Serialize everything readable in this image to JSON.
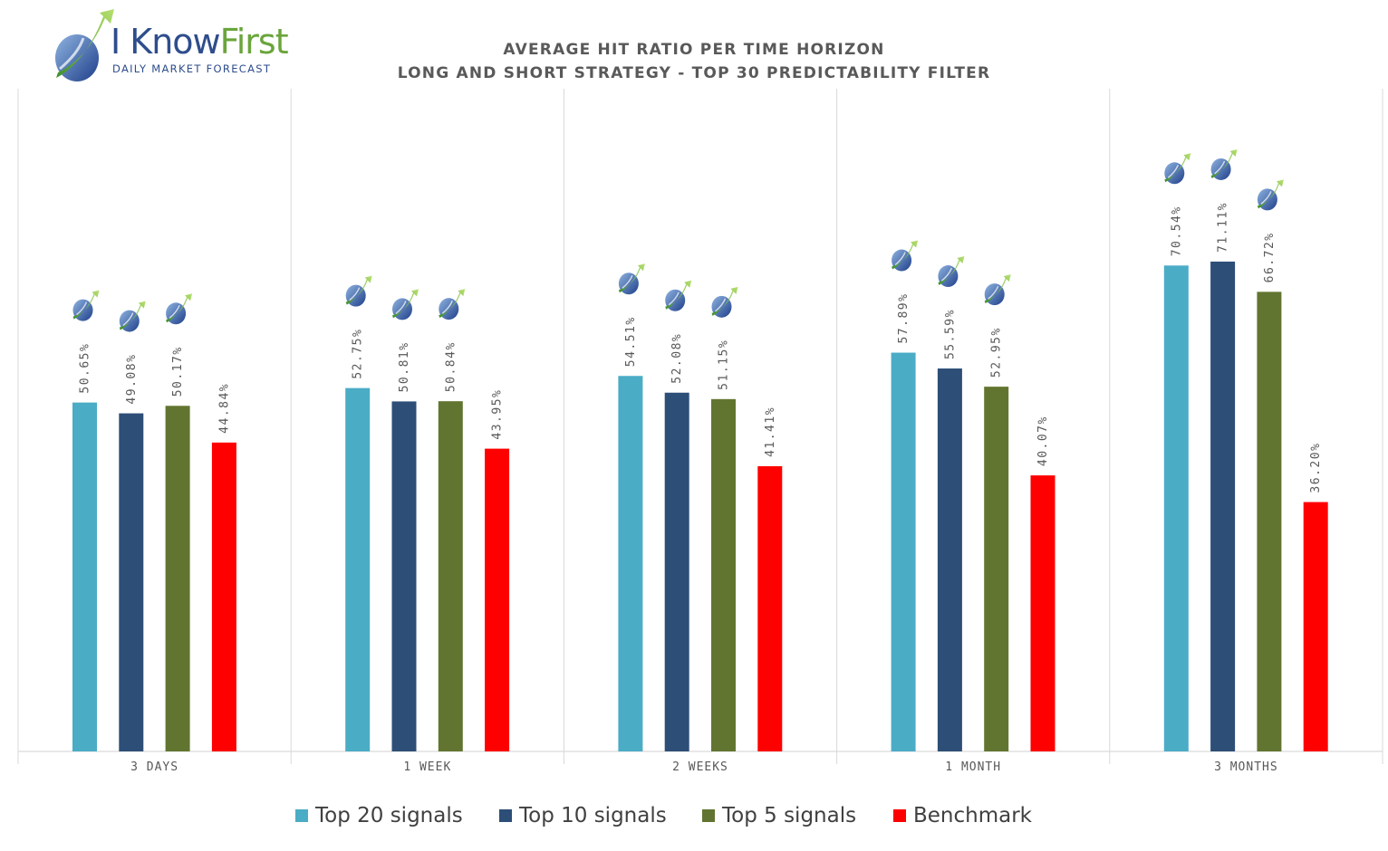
{
  "logo": {
    "name_main": "I Know",
    "name_accent": "First",
    "tagline": "DAILY MARKET FORECAST"
  },
  "chart_data": {
    "type": "bar",
    "title_line1": "AVERAGE HIT RATIO PER TIME HORIZON",
    "title_line2": "LONG AND SHORT STRATEGY - TOP 30 PREDICTABILITY FILTER",
    "categories": [
      "3 DAYS",
      "1 WEEK",
      "2 WEEKS",
      "1 MONTH",
      "3 MONTHS"
    ],
    "series": [
      {
        "name": "Top 20 signals",
        "color": "#4bacc6",
        "values": [
          50.65,
          52.75,
          54.51,
          57.89,
          70.54
        ],
        "labels": [
          "50.65%",
          "52.75%",
          "54.51%",
          "57.89%",
          "70.54%"
        ]
      },
      {
        "name": "Top 10 signals",
        "color": "#2d4e77",
        "values": [
          49.08,
          50.81,
          52.08,
          55.59,
          71.11
        ],
        "labels": [
          "49.08%",
          "50.81%",
          "52.08%",
          "55.59%",
          "71.11%"
        ]
      },
      {
        "name": "Top 5 signals",
        "color": "#627530",
        "values": [
          50.17,
          50.84,
          51.15,
          52.95,
          66.72
        ],
        "labels": [
          "50.17%",
          "50.84%",
          "51.15%",
          "52.95%",
          "66.72%"
        ]
      },
      {
        "name": "Benchmark",
        "color": "#ff0000",
        "values": [
          44.84,
          43.95,
          41.41,
          40.07,
          36.2
        ],
        "labels": [
          "44.84%",
          "43.95%",
          "41.41%",
          "40.07%",
          "36.20%"
        ]
      }
    ],
    "ylim": [
      0,
      100
    ],
    "gridlines": "vertical category separators",
    "legend_position": "bottom",
    "marker_icon": "i-know-first-logo-icon"
  }
}
